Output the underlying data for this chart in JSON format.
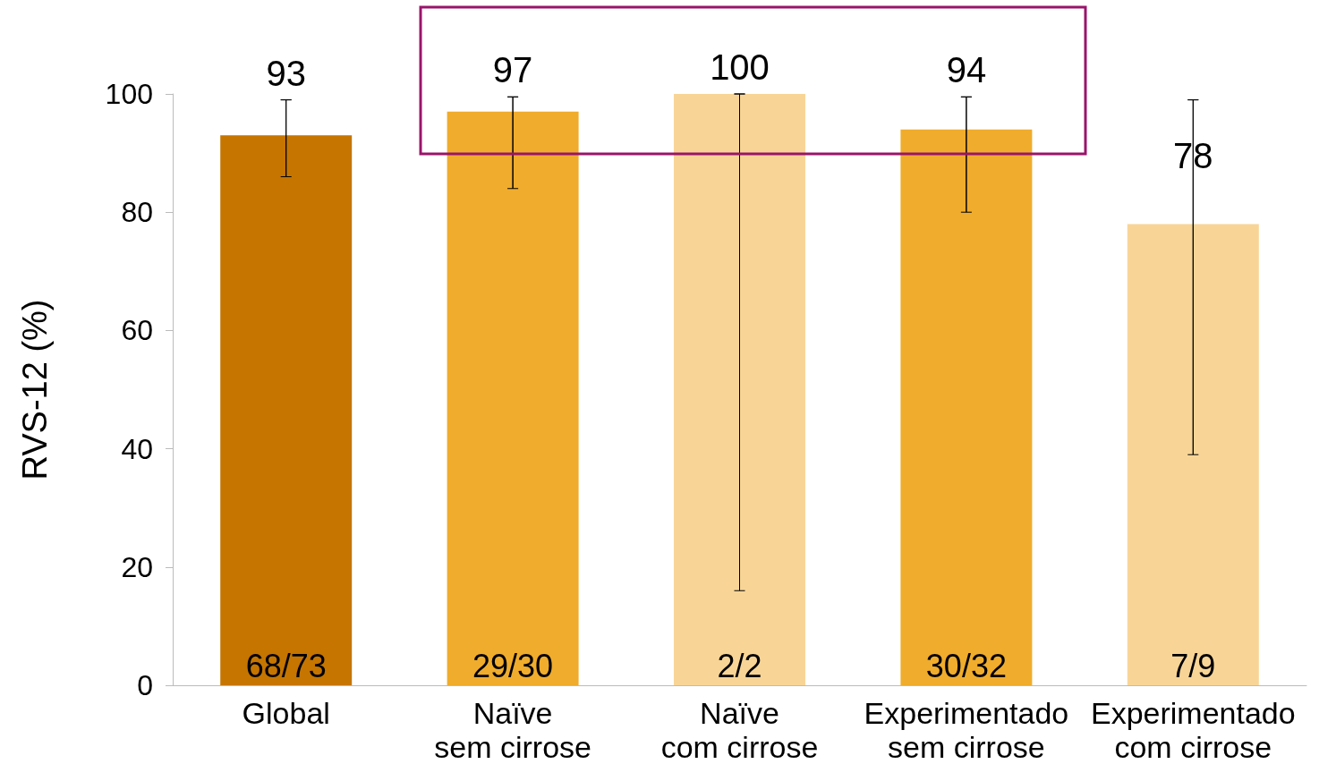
{
  "chart_data": {
    "type": "bar",
    "ylabel": "RVS-12 (%)",
    "categories": [
      "Global",
      "Naïve\nsem cirrose",
      "Naïve\ncom cirrose",
      "Experimentado\nsem cirrose",
      "Experimentado\ncom cirrose"
    ],
    "values": [
      93,
      97,
      100,
      94,
      78
    ],
    "colors": [
      "#c57500",
      "#f0ac2c",
      "#f8d596",
      "#f0ac2c",
      "#f8d596"
    ],
    "errors": [
      [
        86,
        99
      ],
      [
        84,
        99.5
      ],
      [
        16,
        100
      ],
      [
        80,
        99.5
      ],
      [
        39,
        99
      ]
    ],
    "data_labels": true,
    "ylim": [
      0,
      100
    ],
    "yticks": [
      0,
      20,
      40,
      60,
      80,
      100
    ],
    "grid": false,
    "annotations": [
      {
        "text": "68/73",
        "x": "Global",
        "y": 0
      },
      {
        "text": "29/30",
        "x": "Naïve\nsem cirrose",
        "y": 0
      },
      {
        "text": "2/2",
        "x": "Naïve\ncom cirrose",
        "y": 0
      },
      {
        "text": "30/32",
        "x": "Experimentado\nsem cirrose",
        "y": 0
      },
      {
        "text": "7/9",
        "x": "Experimentado\ncom cirrose",
        "y": 0
      }
    ]
  }
}
